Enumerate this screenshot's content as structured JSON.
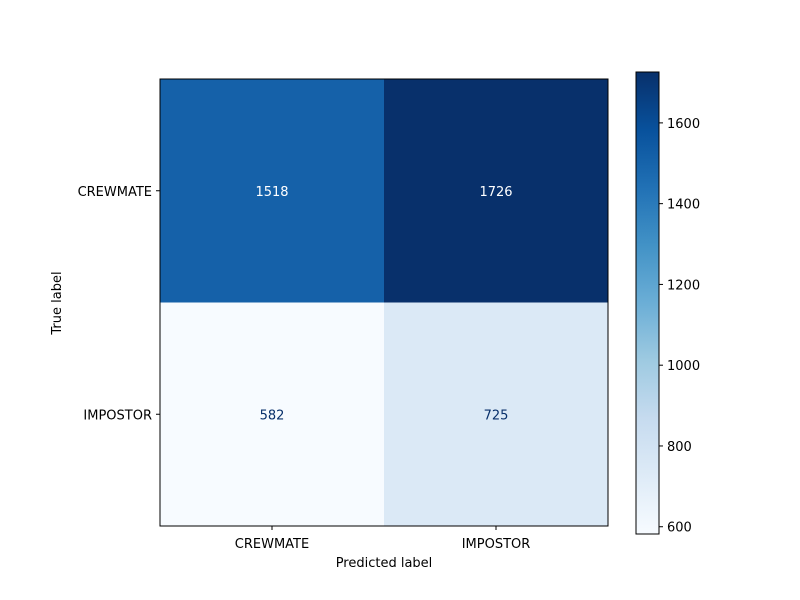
{
  "chart_data": {
    "type": "heatmap",
    "title": "",
    "xlabel": "Predicted label",
    "ylabel": "True label",
    "x_categories": [
      "CREWMATE",
      "IMPOSTOR"
    ],
    "y_categories": [
      "CREWMATE",
      "IMPOSTOR"
    ],
    "values": [
      [
        1518,
        1726
      ],
      [
        582,
        725
      ]
    ],
    "colormap": "Blues",
    "colorbar": {
      "range": [
        582,
        1726
      ],
      "ticks": [
        600,
        800,
        1000,
        1200,
        1400,
        1600
      ]
    },
    "cell_colors": [
      [
        "#1561a9",
        "#08306b"
      ],
      [
        "#f7fbff",
        "#dbe9f6"
      ]
    ],
    "grid": false
  }
}
